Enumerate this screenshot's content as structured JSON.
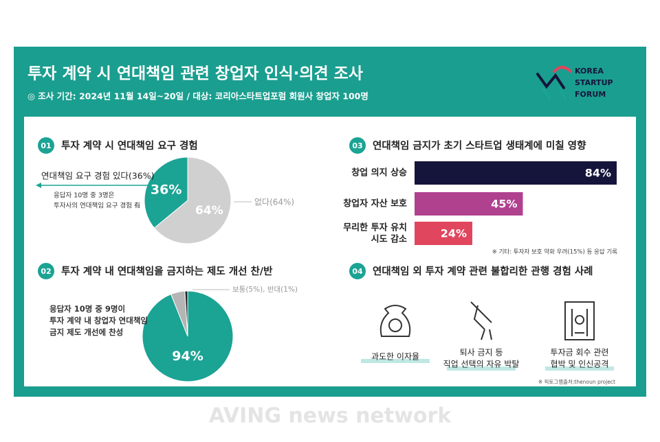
{
  "header": {
    "title": "투자 계약 시 연대책임 관련 창업자 인식·의견 조사",
    "subtitle": "◎ 조사 기간: 2024년 11월 14일~20일 / 대상: 코리아스타트업포럼 회원사 창업자 100명",
    "logo": [
      "KOREA",
      "STARTUP",
      "FORUM"
    ]
  },
  "chart_data": [
    {
      "type": "pie",
      "number": "01",
      "title": "투자 계약 시 연대책임 요구 경험",
      "categories": [
        "연대책임 요구 경험 있다(36%)",
        "없다(64%)"
      ],
      "values": [
        36,
        64
      ],
      "value_labels": [
        "36%",
        "64%"
      ],
      "colors": [
        "#1ba394",
        "#d0d0d0"
      ],
      "note": "응답자 10명 중 3명은\n투자사의 연대책임 요구 경험 有"
    },
    {
      "type": "pie",
      "number": "02",
      "title": "투자 계약 내 연대책임을 금지하는 제도 개선 찬/반",
      "categories": [
        null,
        null,
        null
      ],
      "values": [
        94,
        5,
        1
      ],
      "value_labels": [
        "94%",
        null,
        null
      ],
      "colors": [
        "#1ba394",
        "#b5b5b5",
        "#222222"
      ],
      "annotation": "보통(5%), 반대(1%)",
      "note": "응답자 10명 중 9명이\n투자 계약 내 창업자 연대책임\n금지 제도 개선에 찬성"
    },
    {
      "type": "hbar",
      "number": "03",
      "title": "연대책임 금지가 초기 스타트업 생태계에 미칠 영향",
      "categories": [
        "창업 의지 상승",
        "창업자 자산 보호",
        "무리한 투자 유치\n시도 감소"
      ],
      "values": [
        84,
        45,
        24
      ],
      "value_labels": [
        "84%",
        "45%",
        "24%"
      ],
      "colors": [
        "#15153b",
        "#b0418f",
        "#e0465d"
      ],
      "xlim": [
        0,
        100
      ],
      "note": "※ 기타: 투자자 보호 약화 우려(15%) 등 응답 기록"
    }
  ],
  "section4": {
    "number": "04",
    "title": "연대책임 외 투자 계약 관련 불합리한 관행 경험 사례",
    "items": [
      "과도한 이자율",
      "퇴사 금지 등\n직업 선택의 자유 박탈",
      "투자금 회수 관련\n협박 및 인신공격"
    ],
    "note": "※ 픽토그램출처:thenoun project"
  },
  "watermark": "AVING news network"
}
